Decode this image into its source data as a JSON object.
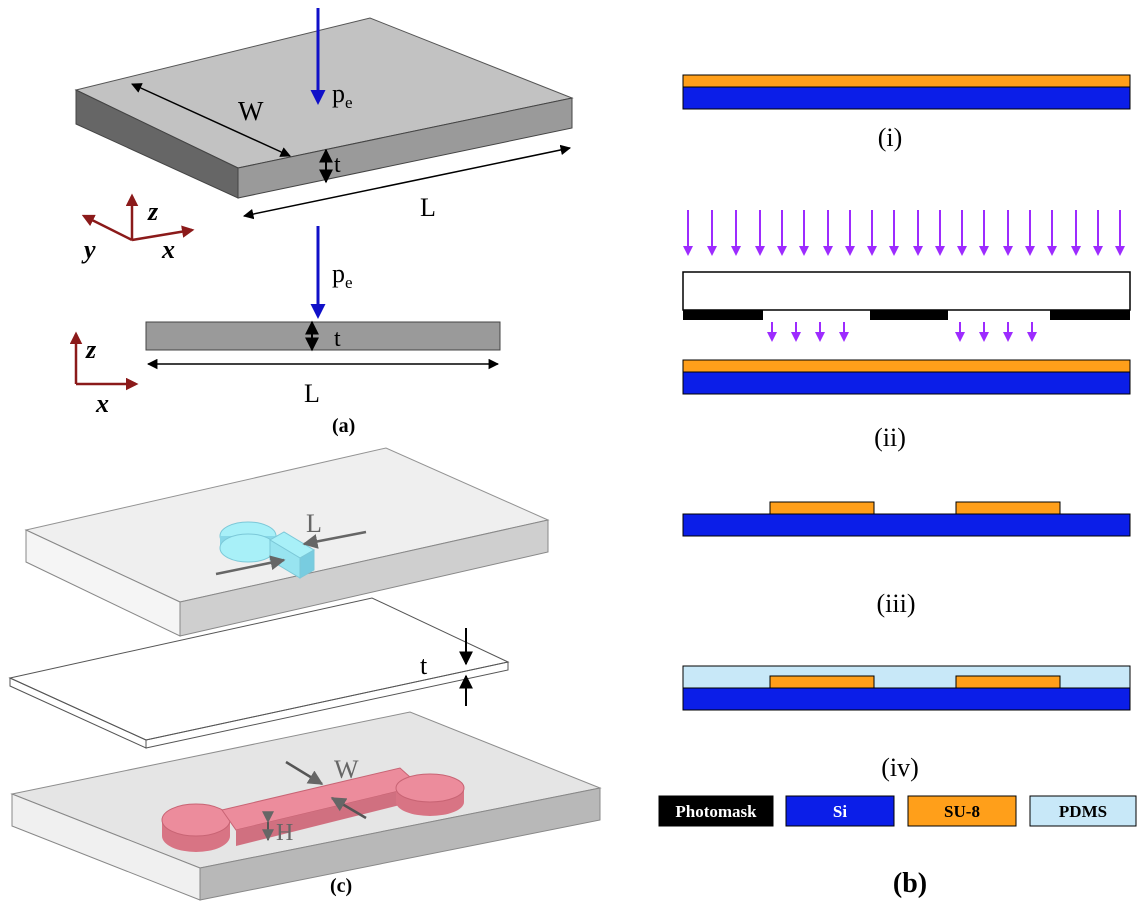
{
  "panel_a": {
    "caption": "(a)",
    "pressure_label_top": "p",
    "pressure_sub_top": "e",
    "pressure_label_bottom": "p",
    "pressure_sub_bottom": "e",
    "width_label": "W",
    "thickness_label_top": "t",
    "length_label_top": "L",
    "thickness_label_bottom": "t",
    "length_label_bottom": "L",
    "axis_z_top": "z",
    "axis_y_top": "y",
    "axis_x_top": "x",
    "axis_z_bottom": "z",
    "axis_x_bottom": "x"
  },
  "panel_b": {
    "caption": "(b)",
    "step_labels": [
      "(i)",
      "(ii)",
      "(iii)",
      "(iv)"
    ],
    "legend": [
      {
        "name": "photomask",
        "label": "Photomask",
        "color": "#000000",
        "text_color": "#ffffff"
      },
      {
        "name": "si",
        "label": "Si",
        "color": "#0b1ee8",
        "text_color": "#ffffff"
      },
      {
        "name": "su8",
        "label": "SU-8",
        "color": "#ff9f1a",
        "text_color": "#000000"
      },
      {
        "name": "pdms",
        "label": "PDMS",
        "color": "#c8e8f8",
        "text_color": "#000000"
      }
    ],
    "colors": {
      "arrow": "#9d2bff"
    }
  },
  "panel_c": {
    "caption": "(c)",
    "length_label": "L",
    "thickness_label": "t",
    "width_label": "W",
    "height_label": "H",
    "colors": {
      "cyan_part": "#a8f0f8",
      "pink_part": "#ec8c9c"
    }
  }
}
